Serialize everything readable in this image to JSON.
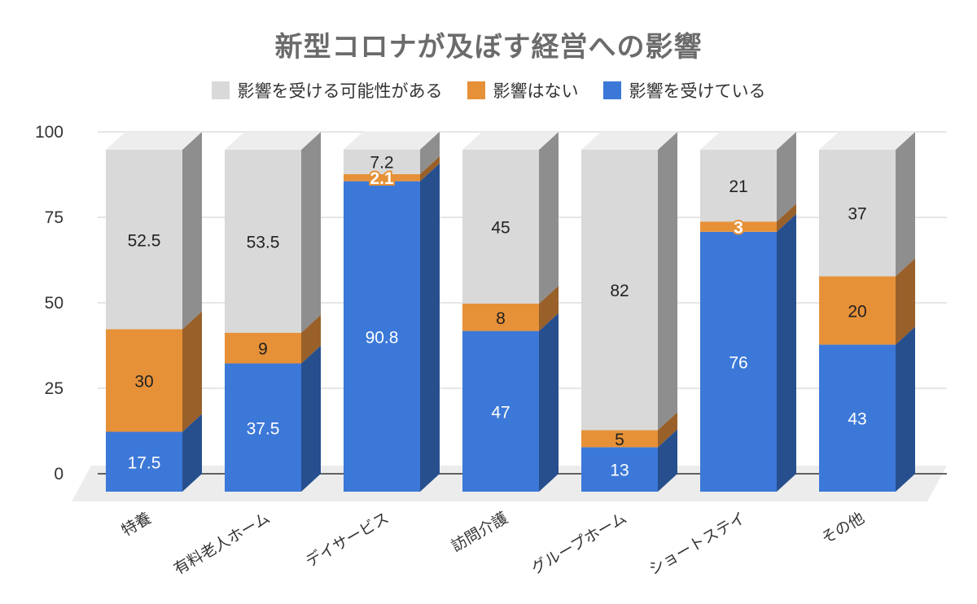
{
  "chart_data": {
    "type": "bar",
    "title": "新型コロナが及ぼす経営への影響",
    "categories": [
      "特養",
      "有料老人ホーム",
      "デイサービス",
      "訪問介護",
      "グループホーム",
      "ショートステイ",
      "その他"
    ],
    "series": [
      {
        "name": "影響を受ける可能性がある",
        "color": "#d9d9d9",
        "side": "#8e8e8e",
        "values": [
          52.5,
          53.5,
          7.2,
          45,
          82,
          21,
          37
        ]
      },
      {
        "name": "影響はない",
        "color": "#e69138",
        "side": "#99602a",
        "values": [
          30,
          9,
          2.1,
          8,
          5,
          3,
          20
        ]
      },
      {
        "name": "影響を受けている",
        "color": "#3c78d8",
        "side": "#274f8e",
        "values": [
          17.5,
          37.5,
          90.8,
          47,
          13,
          76,
          43
        ]
      }
    ],
    "stack_order": [
      "影響を受けている",
      "影響はない",
      "影響を受ける可能性がある"
    ],
    "y_ticks": [
      "0",
      "25",
      "50",
      "75",
      "100"
    ],
    "ylim": [
      0,
      100
    ],
    "stacked": true,
    "three_d": true,
    "grid": true,
    "legend_position": "top"
  }
}
